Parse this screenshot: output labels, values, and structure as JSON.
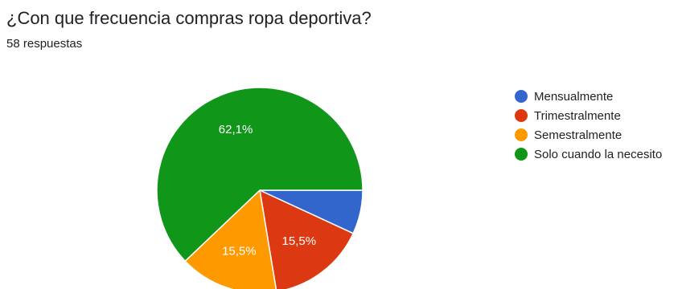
{
  "question": {
    "title": "¿Con que frecuencia compras ropa deportiva?",
    "responses": "58 respuestas"
  },
  "chart_data": {
    "type": "pie",
    "categories": [
      "Mensualmente",
      "Trimestralmente",
      "Semestralmente",
      "Solo cuando la necesito"
    ],
    "values": [
      6.9,
      15.5,
      15.5,
      62.1
    ],
    "data_labels": [
      "",
      "15,5%",
      "15,5%",
      "62,1%"
    ],
    "colors": [
      "#3366cc",
      "#dc3912",
      "#ff9900",
      "#109618"
    ],
    "legend_position": "right",
    "start": "3 o'clock, clockwise"
  }
}
